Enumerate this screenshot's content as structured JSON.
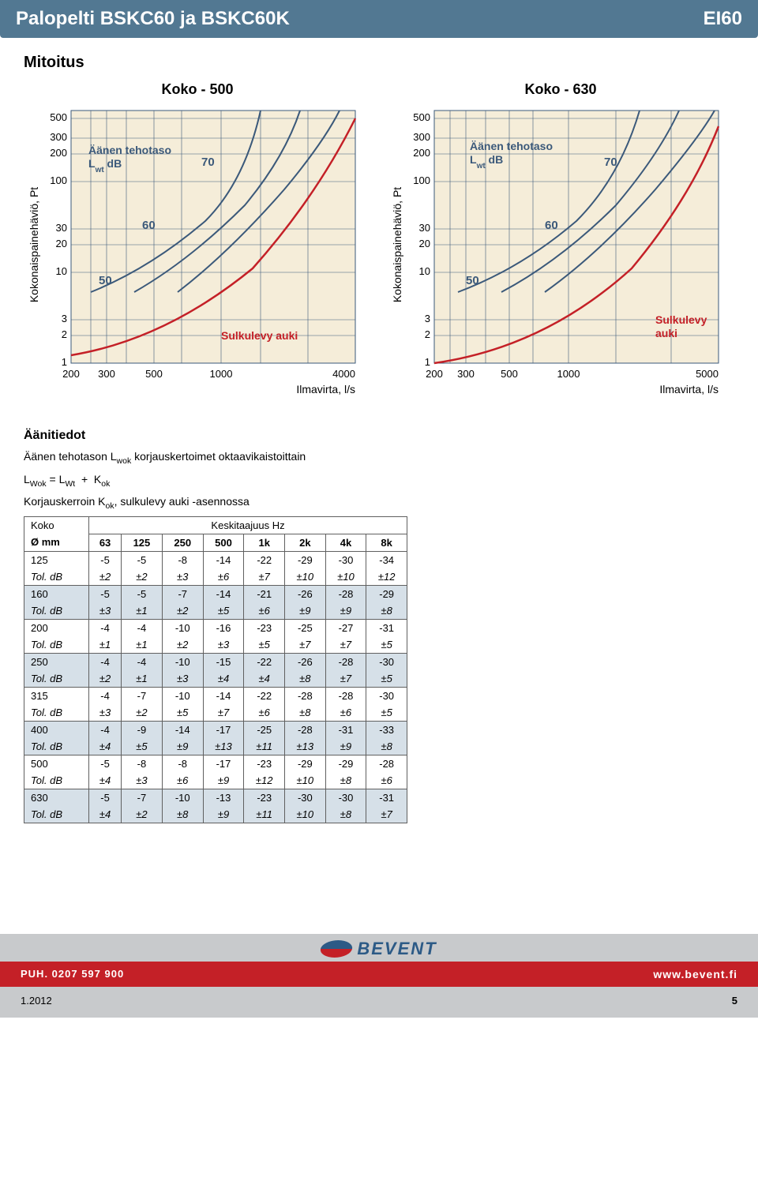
{
  "header": {
    "title_left": "Palopelti BSKC60 ja BSKC60K",
    "title_right": "EI60"
  },
  "section_title": "Mitoitus",
  "charts": {
    "left": {
      "title": "Koko - 500",
      "y_label_lines": [
        "Kokonaispainehäviö, Pt"
      ],
      "x_label": "Ilmavirta, l/s",
      "x_ticks": [
        "200",
        "300",
        "500",
        "1000",
        "4000"
      ],
      "y_ticks": [
        "1",
        "2",
        "3",
        "10",
        "20",
        "30",
        "100",
        "200",
        "300",
        "500"
      ],
      "bg": "#f5edd9",
      "grid_color": "#3b597a",
      "annotation_label": "Äänen tehotaso",
      "annotation_sub": "Lwt dB",
      "curve_labels": [
        "50",
        "60",
        "70"
      ],
      "curve_color": "#3b597a",
      "red_curve_color": "#c42027",
      "red_label": "Sulkulevy auki"
    },
    "right": {
      "title": "Koko - 630",
      "y_label_lines": [
        "Kokonaispainehäviö, Pt"
      ],
      "x_label": "Ilmavirta, l/s",
      "x_ticks": [
        "200",
        "300",
        "500",
        "1000",
        "5000"
      ],
      "y_ticks": [
        "1",
        "2",
        "3",
        "10",
        "20",
        "30",
        "100",
        "200",
        "300",
        "500"
      ],
      "bg": "#f5edd9",
      "grid_color": "#3b597a",
      "annotation_label": "Äänen tehotaso",
      "annotation_sub": "Lwt dB",
      "curve_labels": [
        "50",
        "60",
        "70"
      ],
      "curve_color": "#3b597a",
      "red_curve_color": "#c42027",
      "red_label": "Sulkulevy",
      "red_label2": "auki"
    }
  },
  "sound": {
    "heading": "Äänitiedot",
    "line1": "Äänen tehotason L",
    "line1_sub": "wok",
    "line1_tail": " korjauskertoimet oktaavikaistoittain",
    "formula": "LWok = LWt  +   Kok",
    "line2": "Korjauskerroin K",
    "line2_sub": "ok",
    "line2_tail": ", sulkulevy auki -asennossa"
  },
  "table": {
    "head_top_left": "Koko",
    "head_top_right": "Keskitaajuus Hz",
    "head_row": [
      "Ø mm",
      "63",
      "125",
      "250",
      "500",
      "1k",
      "2k",
      "4k",
      "8k"
    ],
    "rows": [
      {
        "shade": false,
        "size": "125",
        "vals": [
          "-5",
          "-5",
          "-8",
          "-14",
          "-22",
          "-29",
          "-30",
          "-34"
        ],
        "tol": [
          "±2",
          "±2",
          "±3",
          "±6",
          "±7",
          "±10",
          "±10",
          "±12"
        ]
      },
      {
        "shade": true,
        "size": "160",
        "vals": [
          "-5",
          "-5",
          "-7",
          "-14",
          "-21",
          "-26",
          "-28",
          "-29"
        ],
        "tol": [
          "±3",
          "±1",
          "±2",
          "±5",
          "±6",
          "±9",
          "±9",
          "±8"
        ]
      },
      {
        "shade": false,
        "size": "200",
        "vals": [
          "-4",
          "-4",
          "-10",
          "-16",
          "-23",
          "-25",
          "-27",
          "-31"
        ],
        "tol": [
          "±1",
          "±1",
          "±2",
          "±3",
          "±5",
          "±7",
          "±7",
          "±5"
        ]
      },
      {
        "shade": true,
        "size": "250",
        "vals": [
          "-4",
          "-4",
          "-10",
          "-15",
          "-22",
          "-26",
          "-28",
          "-30"
        ],
        "tol": [
          "±2",
          "±1",
          "±3",
          "±4",
          "±4",
          "±8",
          "±7",
          "±5"
        ]
      },
      {
        "shade": false,
        "size": "315",
        "vals": [
          "-4",
          "-7",
          "-10",
          "-14",
          "-22",
          "-28",
          "-28",
          "-30"
        ],
        "tol": [
          "±3",
          "±2",
          "±5",
          "±7",
          "±6",
          "±8",
          "±6",
          "±5"
        ]
      },
      {
        "shade": true,
        "size": "400",
        "vals": [
          "-4",
          "-9",
          "-14",
          "-17",
          "-25",
          "-28",
          "-31",
          "-33"
        ],
        "tol": [
          "±4",
          "±5",
          "±9",
          "±13",
          "±11",
          "±13",
          "±9",
          "±8"
        ]
      },
      {
        "shade": false,
        "size": "500",
        "vals": [
          "-5",
          "-8",
          "-8",
          "-17",
          "-23",
          "-29",
          "-29",
          "-28"
        ],
        "tol": [
          "±4",
          "±3",
          "±6",
          "±9",
          "±12",
          "±10",
          "±8",
          "±6"
        ]
      },
      {
        "shade": true,
        "size": "630",
        "vals": [
          "-5",
          "-7",
          "-10",
          "-13",
          "-23",
          "-30",
          "-30",
          "-31"
        ],
        "tol": [
          "±4",
          "±2",
          "±8",
          "±9",
          "±11",
          "±10",
          "±8",
          "±7"
        ]
      }
    ],
    "tol_label": "Tol. dB"
  },
  "footer": {
    "phone": "PUH. 0207 597 900",
    "url": "www.bevent.fi",
    "brand": "BEVENT",
    "date": "1.2012",
    "page": "5"
  }
}
